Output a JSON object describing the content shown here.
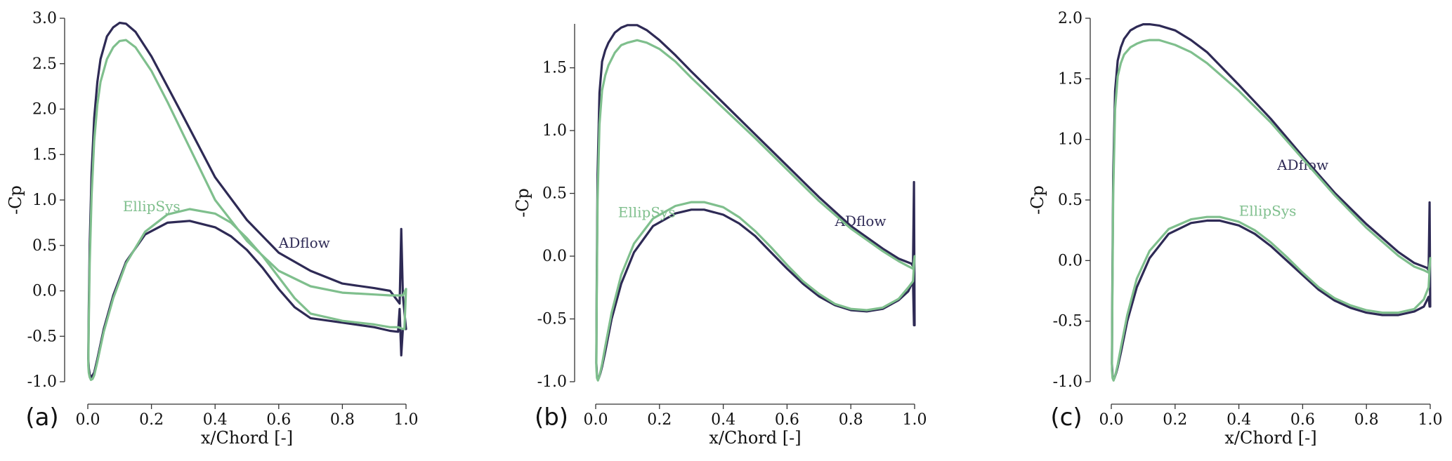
{
  "chart_data": [
    {
      "type": "line",
      "panel_label": "(a)",
      "xlabel": "x/Chord [-]",
      "ylabel": "-Cp",
      "xlim": [
        0.0,
        1.0
      ],
      "ylim": [
        -1.0,
        3.0
      ],
      "xticks": [
        "0.0",
        "0.2",
        "0.4",
        "0.6",
        "0.8",
        "1.0"
      ],
      "yticks": [
        "-1.0",
        "-0.5",
        "0.0",
        "0.5",
        "1.0",
        "1.5",
        "2.0",
        "2.5",
        "3.0"
      ],
      "grid": false,
      "series": [
        {
          "name": "ADflow",
          "color": "#2e2a55",
          "label_at": [
            0.6,
            0.53
          ],
          "x": [
            1.0,
            0.99,
            0.985,
            0.98,
            0.95,
            0.9,
            0.8,
            0.7,
            0.6,
            0.5,
            0.4,
            0.3,
            0.25,
            0.2,
            0.15,
            0.12,
            0.1,
            0.08,
            0.06,
            0.04,
            0.03,
            0.02,
            0.012,
            0.006,
            0.003,
            0.0015,
            0.003,
            0.006,
            0.01,
            0.015,
            0.02,
            0.03,
            0.05,
            0.08,
            0.12,
            0.18,
            0.25,
            0.32,
            0.4,
            0.45,
            0.5,
            0.55,
            0.6,
            0.65,
            0.7,
            0.8,
            0.9,
            0.95,
            0.975,
            0.98,
            0.985,
            0.99,
            1.0
          ],
          "y": [
            -0.42,
            -0.05,
            0.68,
            -0.14,
            0.0,
            0.03,
            0.08,
            0.22,
            0.42,
            0.78,
            1.25,
            1.92,
            2.25,
            2.58,
            2.85,
            2.94,
            2.95,
            2.9,
            2.8,
            2.55,
            2.3,
            1.9,
            1.3,
            0.5,
            -0.2,
            -0.75,
            -0.85,
            -0.92,
            -0.95,
            -0.93,
            -0.9,
            -0.75,
            -0.42,
            -0.05,
            0.32,
            0.62,
            0.75,
            0.77,
            0.7,
            0.6,
            0.45,
            0.25,
            0.02,
            -0.18,
            -0.3,
            -0.35,
            -0.4,
            -0.44,
            -0.45,
            -0.2,
            -0.71,
            -0.42,
            -0.42
          ]
        },
        {
          "name": "EllipSys",
          "color": "#7fbf8d",
          "label_at": [
            0.11,
            0.93
          ],
          "x": [
            1.0,
            0.99,
            0.97,
            0.95,
            0.9,
            0.8,
            0.7,
            0.6,
            0.5,
            0.4,
            0.3,
            0.25,
            0.2,
            0.15,
            0.12,
            0.1,
            0.08,
            0.06,
            0.04,
            0.03,
            0.02,
            0.012,
            0.006,
            0.003,
            0.0015,
            0.003,
            0.006,
            0.01,
            0.015,
            0.02,
            0.03,
            0.05,
            0.08,
            0.12,
            0.18,
            0.25,
            0.32,
            0.4,
            0.45,
            0.5,
            0.55,
            0.6,
            0.65,
            0.7,
            0.8,
            0.9,
            0.95,
            0.975,
            0.99,
            0.995,
            1.0
          ],
          "y": [
            0.02,
            -0.05,
            -0.05,
            -0.05,
            -0.04,
            -0.02,
            0.05,
            0.22,
            0.55,
            1.0,
            1.72,
            2.08,
            2.42,
            2.68,
            2.76,
            2.75,
            2.68,
            2.55,
            2.3,
            2.05,
            1.65,
            1.05,
            0.3,
            -0.35,
            -0.82,
            -0.9,
            -0.95,
            -0.98,
            -0.97,
            -0.93,
            -0.78,
            -0.45,
            -0.08,
            0.3,
            0.65,
            0.84,
            0.9,
            0.85,
            0.75,
            0.58,
            0.38,
            0.15,
            -0.08,
            -0.25,
            -0.33,
            -0.37,
            -0.4,
            -0.4,
            -0.42,
            -0.42,
            0.02
          ]
        }
      ]
    },
    {
      "type": "line",
      "panel_label": "(b)",
      "xlabel": "x/Chord [-]",
      "ylabel": "-Cp",
      "xlim": [
        0.0,
        1.0
      ],
      "ylim": [
        -1.0,
        1.85
      ],
      "xticks": [
        "0.0",
        "0.2",
        "0.4",
        "0.6",
        "0.8",
        "1.0"
      ],
      "yticks": [
        "-1.0",
        "-0.5",
        "0.0",
        "0.5",
        "1.0",
        "1.5"
      ],
      "grid": false,
      "series": [
        {
          "name": "ADflow",
          "color": "#2e2a55",
          "label_at": [
            0.75,
            0.28
          ],
          "x": [
            1.0,
            0.998,
            0.995,
            0.99,
            0.95,
            0.9,
            0.8,
            0.7,
            0.6,
            0.5,
            0.4,
            0.3,
            0.25,
            0.2,
            0.16,
            0.13,
            0.1,
            0.08,
            0.06,
            0.04,
            0.03,
            0.02,
            0.012,
            0.006,
            0.003,
            0.002,
            0.004,
            0.007,
            0.01,
            0.015,
            0.02,
            0.03,
            0.05,
            0.08,
            0.12,
            0.18,
            0.25,
            0.3,
            0.34,
            0.4,
            0.45,
            0.5,
            0.55,
            0.6,
            0.65,
            0.7,
            0.75,
            0.8,
            0.85,
            0.9,
            0.95,
            0.98,
            0.995,
            0.998,
            1.0
          ],
          "y": [
            -0.55,
            0.59,
            -0.08,
            -0.06,
            -0.02,
            0.06,
            0.24,
            0.47,
            0.72,
            0.97,
            1.22,
            1.47,
            1.6,
            1.72,
            1.8,
            1.84,
            1.84,
            1.82,
            1.78,
            1.7,
            1.64,
            1.55,
            1.3,
            0.65,
            -0.3,
            -0.85,
            -0.95,
            -0.98,
            -0.97,
            -0.93,
            -0.88,
            -0.76,
            -0.5,
            -0.22,
            0.03,
            0.24,
            0.34,
            0.37,
            0.37,
            0.33,
            0.26,
            0.16,
            0.03,
            -0.1,
            -0.22,
            -0.32,
            -0.39,
            -0.43,
            -0.44,
            -0.42,
            -0.35,
            -0.28,
            -0.2,
            -0.55,
            -0.55
          ]
        },
        {
          "name": "EllipSys",
          "color": "#7fbf8d",
          "label_at": [
            0.07,
            0.35
          ],
          "x": [
            1.0,
            0.995,
            0.98,
            0.95,
            0.9,
            0.8,
            0.7,
            0.6,
            0.5,
            0.4,
            0.3,
            0.25,
            0.2,
            0.16,
            0.13,
            0.1,
            0.08,
            0.06,
            0.04,
            0.03,
            0.02,
            0.012,
            0.006,
            0.003,
            0.002,
            0.004,
            0.007,
            0.01,
            0.015,
            0.02,
            0.03,
            0.05,
            0.08,
            0.12,
            0.18,
            0.25,
            0.3,
            0.34,
            0.4,
            0.45,
            0.5,
            0.55,
            0.6,
            0.65,
            0.7,
            0.75,
            0.8,
            0.85,
            0.9,
            0.95,
            0.98,
            0.995,
            1.0
          ],
          "y": [
            0.0,
            -0.1,
            -0.08,
            -0.04,
            0.04,
            0.22,
            0.44,
            0.69,
            0.94,
            1.18,
            1.42,
            1.55,
            1.65,
            1.7,
            1.72,
            1.7,
            1.68,
            1.62,
            1.52,
            1.44,
            1.32,
            1.05,
            0.45,
            -0.4,
            -0.88,
            -0.97,
            -0.99,
            -0.97,
            -0.92,
            -0.86,
            -0.72,
            -0.45,
            -0.15,
            0.1,
            0.3,
            0.4,
            0.43,
            0.43,
            0.39,
            0.31,
            0.2,
            0.07,
            -0.07,
            -0.2,
            -0.3,
            -0.38,
            -0.42,
            -0.43,
            -0.41,
            -0.34,
            -0.25,
            -0.2,
            0.0
          ]
        }
      ]
    },
    {
      "type": "line",
      "panel_label": "(c)",
      "xlabel": "x/Chord [-]",
      "ylabel": "-Cp",
      "xlim": [
        0.0,
        1.0
      ],
      "ylim": [
        -1.0,
        2.0
      ],
      "xticks": [
        "0.0",
        "0.2",
        "0.4",
        "0.6",
        "0.8",
        "1.0"
      ],
      "yticks": [
        "-1.0",
        "-0.5",
        "0.0",
        "0.5",
        "1.0",
        "1.5",
        "2.0"
      ],
      "grid": false,
      "series": [
        {
          "name": "ADflow",
          "color": "#2e2a55",
          "label_at": [
            0.52,
            0.79
          ],
          "x": [
            1.0,
            0.998,
            0.995,
            0.99,
            0.95,
            0.9,
            0.8,
            0.7,
            0.6,
            0.5,
            0.4,
            0.3,
            0.25,
            0.2,
            0.15,
            0.12,
            0.1,
            0.08,
            0.06,
            0.04,
            0.03,
            0.02,
            0.012,
            0.006,
            0.003,
            0.002,
            0.004,
            0.007,
            0.01,
            0.015,
            0.02,
            0.03,
            0.05,
            0.08,
            0.12,
            0.18,
            0.25,
            0.3,
            0.34,
            0.4,
            0.45,
            0.5,
            0.55,
            0.6,
            0.65,
            0.7,
            0.75,
            0.8,
            0.85,
            0.9,
            0.95,
            0.98,
            0.995,
            0.998,
            1.0
          ],
          "y": [
            -0.38,
            0.48,
            -0.08,
            -0.06,
            -0.02,
            0.07,
            0.3,
            0.56,
            0.86,
            1.17,
            1.45,
            1.72,
            1.82,
            1.9,
            1.94,
            1.95,
            1.95,
            1.93,
            1.9,
            1.83,
            1.76,
            1.65,
            1.4,
            0.7,
            -0.3,
            -0.85,
            -0.95,
            -0.98,
            -0.97,
            -0.93,
            -0.88,
            -0.76,
            -0.5,
            -0.22,
            0.02,
            0.22,
            0.31,
            0.33,
            0.33,
            0.29,
            0.22,
            0.12,
            0.0,
            -0.12,
            -0.24,
            -0.33,
            -0.39,
            -0.43,
            -0.45,
            -0.45,
            -0.42,
            -0.38,
            -0.3,
            -0.38,
            -0.38
          ]
        },
        {
          "name": "EllipSys",
          "color": "#7fbf8d",
          "label_at": [
            0.4,
            0.41
          ],
          "x": [
            1.0,
            0.995,
            0.98,
            0.95,
            0.9,
            0.8,
            0.7,
            0.6,
            0.5,
            0.4,
            0.3,
            0.25,
            0.2,
            0.15,
            0.12,
            0.1,
            0.08,
            0.06,
            0.04,
            0.03,
            0.02,
            0.012,
            0.006,
            0.003,
            0.002,
            0.004,
            0.007,
            0.01,
            0.015,
            0.02,
            0.03,
            0.05,
            0.08,
            0.12,
            0.18,
            0.25,
            0.3,
            0.34,
            0.4,
            0.45,
            0.5,
            0.55,
            0.6,
            0.65,
            0.7,
            0.75,
            0.8,
            0.85,
            0.9,
            0.95,
            0.98,
            0.995,
            1.0
          ],
          "y": [
            0.02,
            -0.1,
            -0.08,
            -0.05,
            0.04,
            0.27,
            0.54,
            0.84,
            1.14,
            1.4,
            1.63,
            1.72,
            1.78,
            1.82,
            1.82,
            1.81,
            1.79,
            1.76,
            1.7,
            1.63,
            1.52,
            1.25,
            0.55,
            -0.4,
            -0.9,
            -0.97,
            -0.99,
            -0.97,
            -0.92,
            -0.86,
            -0.72,
            -0.45,
            -0.15,
            0.08,
            0.26,
            0.34,
            0.36,
            0.36,
            0.32,
            0.25,
            0.15,
            0.03,
            -0.1,
            -0.22,
            -0.31,
            -0.37,
            -0.41,
            -0.43,
            -0.43,
            -0.4,
            -0.32,
            -0.22,
            0.02
          ]
        }
      ]
    }
  ]
}
